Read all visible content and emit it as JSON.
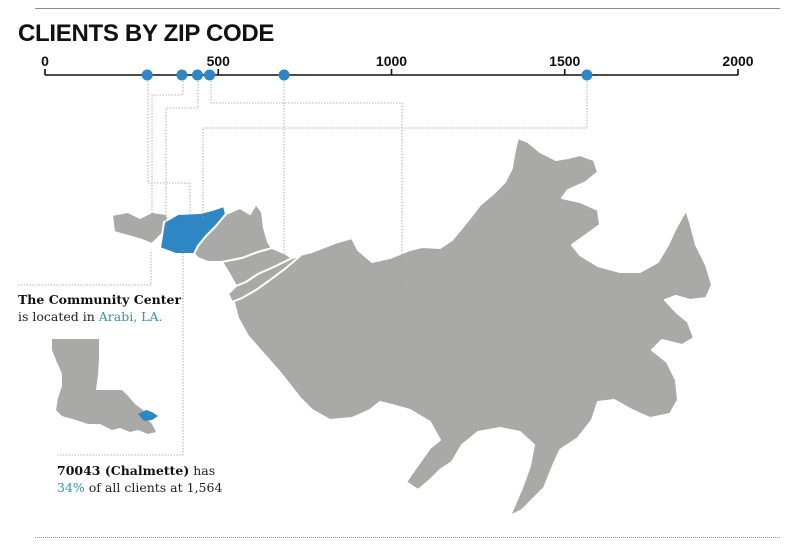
{
  "title": "CLIENTS BY ZIP CODE",
  "colors": {
    "highlight": "#2f86c4",
    "land": "#a9a9a7",
    "axis": "#111111",
    "leader": "#9b9b9b",
    "text_highlight": "#3a8fc8"
  },
  "chart_data": {
    "type": "scatter",
    "title": "CLIENTS BY ZIP CODE",
    "xlabel": "",
    "ylabel": "",
    "xlim": [
      0,
      2000
    ],
    "ticks": [
      0,
      500,
      1000,
      1500,
      2000
    ],
    "tick_labels": [
      "0",
      "500",
      "1000",
      "1500",
      "2000"
    ],
    "series": [
      {
        "values": [
          295,
          395,
          440,
          475,
          690,
          1564
        ]
      }
    ]
  },
  "map": {
    "regions": [
      "zip-region-1",
      "zip-region-2",
      "zip-region-3",
      "zip-region-4",
      "zip-region-5",
      "zip-region-6"
    ],
    "highlighted_region": "zip-region-2"
  },
  "notes": {
    "center": {
      "name": "The Community Center",
      "prefix": "is located in ",
      "place": "Arabi, LA."
    },
    "zip": {
      "label": "70043 (Chalmette)",
      "has": " has",
      "percent": "34%",
      "rest": " of all clients at 1,564"
    }
  }
}
